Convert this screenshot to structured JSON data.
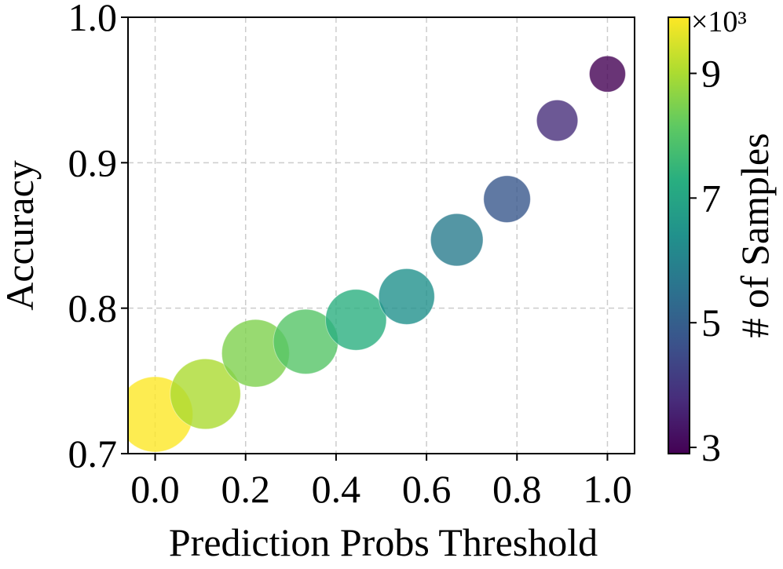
{
  "chart_data": {
    "type": "scatter",
    "title": "",
    "xlabel": "Prediction Probs Threshold",
    "ylabel": "Accuracy",
    "xlim": [
      -0.06,
      1.06
    ],
    "ylim": [
      0.7,
      1.0
    ],
    "xticks": [
      0.0,
      0.2,
      0.4,
      0.6,
      0.8,
      1.0
    ],
    "xtick_labels": [
      "0.0",
      "0.2",
      "0.4",
      "0.6",
      "0.8",
      "1.0"
    ],
    "yticks": [
      0.7,
      0.8,
      0.9,
      1.0
    ],
    "ytick_labels": [
      "0.7",
      "0.8",
      "0.9",
      "1.0"
    ],
    "grid": true,
    "colorbar": {
      "label": "# of Samples",
      "multiplier_label": "×10³",
      "range": [
        2.9,
        9.9
      ],
      "ticks": [
        3,
        5,
        7,
        9
      ],
      "tick_labels": [
        "3",
        "5",
        "7",
        "9"
      ],
      "colormap": "viridis"
    },
    "series": [
      {
        "x": [
          0.0,
          0.111,
          0.222,
          0.333,
          0.444,
          0.556,
          0.667,
          0.778,
          0.889,
          1.0
        ],
        "y": [
          0.727,
          0.741,
          0.769,
          0.777,
          0.792,
          0.808,
          0.847,
          0.875,
          0.929,
          0.961
        ],
        "samples_thousands": [
          9.9,
          9.0,
          8.5,
          8.0,
          7.3,
          6.4,
          5.8,
          4.8,
          3.8,
          2.9
        ]
      }
    ]
  }
}
